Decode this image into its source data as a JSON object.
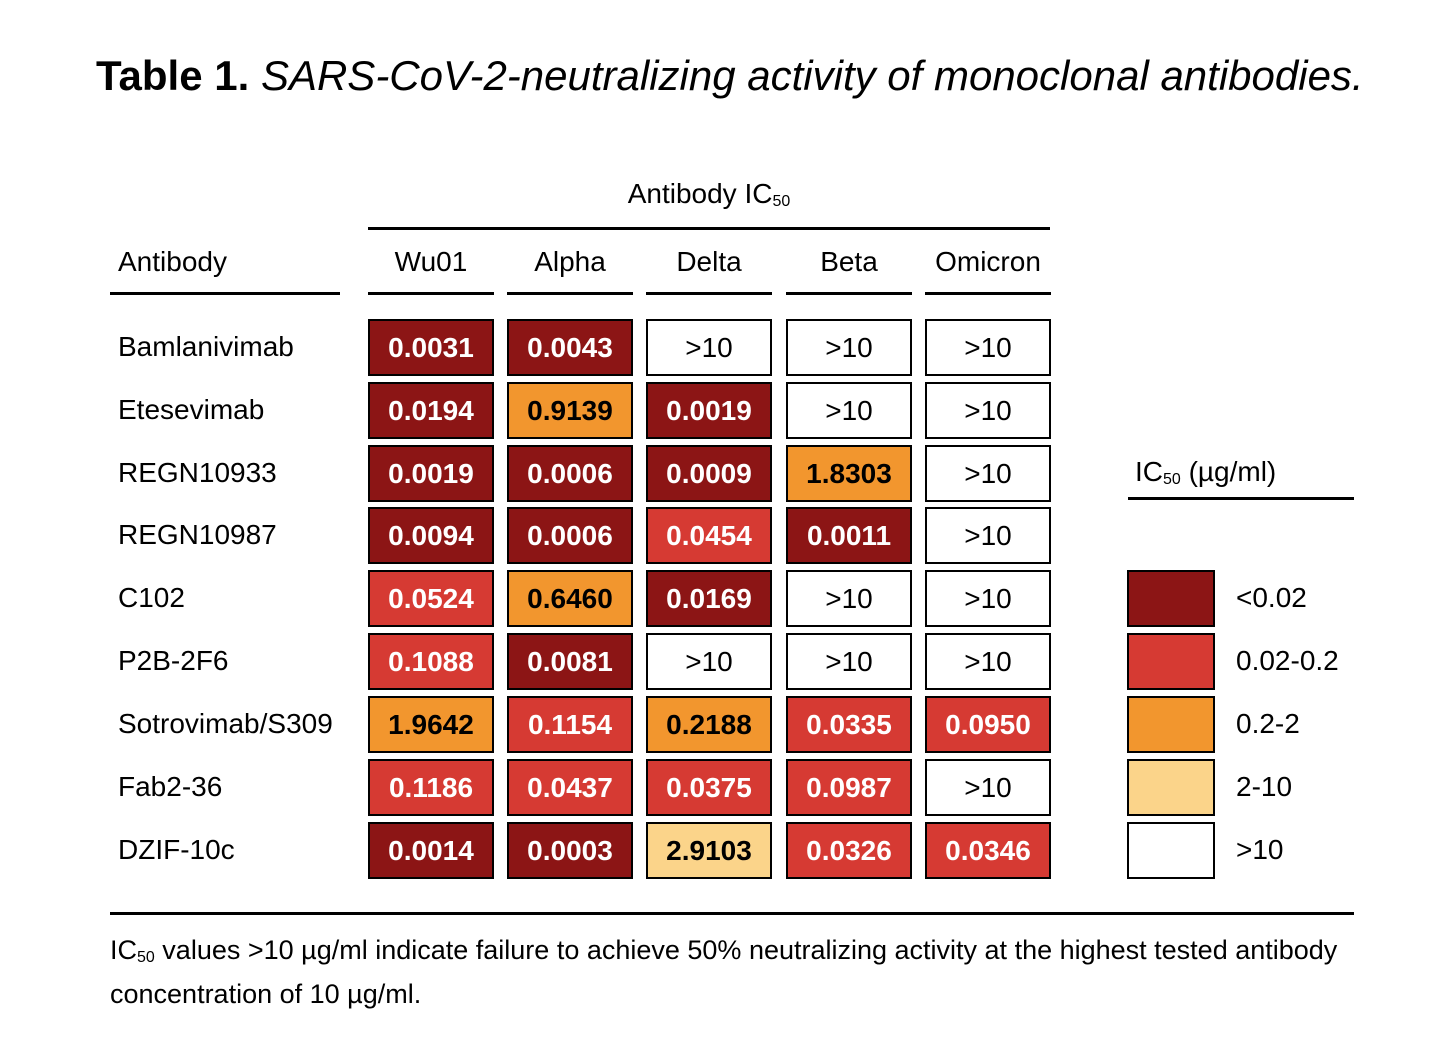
{
  "title": {
    "prefix": "Table 1.",
    "text": "SARS-CoV-2-neutralizing activity of monoclonal antibodies."
  },
  "group_header": {
    "label": "Antibody IC",
    "sub": "50"
  },
  "antibody_header": "Antibody",
  "chart_data": {
    "type": "table",
    "title": "Table 1. SARS-CoV-2-neutralizing activity of monoclonal antibodies.",
    "columns": [
      "Wu01",
      "Alpha",
      "Delta",
      "Beta",
      "Omicron"
    ],
    "rows": [
      {
        "antibody": "Bamlanivimab",
        "values": [
          "0.0031",
          "0.0043",
          ">10",
          ">10",
          ">10"
        ]
      },
      {
        "antibody": "Etesevimab",
        "values": [
          "0.0194",
          "0.9139",
          "0.0019",
          ">10",
          ">10"
        ]
      },
      {
        "antibody": "REGN10933",
        "values": [
          "0.0019",
          "0.0006",
          "0.0009",
          "1.8303",
          ">10"
        ]
      },
      {
        "antibody": "REGN10987",
        "values": [
          "0.0094",
          "0.0006",
          "0.0454",
          "0.0011",
          ">10"
        ]
      },
      {
        "antibody": "C102",
        "values": [
          "0.0524",
          "0.6460",
          "0.0169",
          ">10",
          ">10"
        ]
      },
      {
        "antibody": "P2B-2F6",
        "values": [
          "0.1088",
          "0.0081",
          ">10",
          ">10",
          ">10"
        ]
      },
      {
        "antibody": "Sotrovimab/S309",
        "values": [
          "1.9642",
          "0.1154",
          "0.2188",
          "0.0335",
          "0.0950"
        ]
      },
      {
        "antibody": "Fab2-36",
        "values": [
          "0.1186",
          "0.0437",
          "0.0375",
          "0.0987",
          ">10"
        ]
      },
      {
        "antibody": "DZIF-10c",
        "values": [
          "0.0014",
          "0.0003",
          "2.9103",
          "0.0326",
          "0.0346"
        ]
      }
    ],
    "legend": {
      "title_prefix": "IC",
      "title_sub": "50",
      "title_suffix": " (µg/ml)",
      "bins": [
        {
          "label": "<0.02",
          "color": "#8c1515"
        },
        {
          "label": "0.02-0.2",
          "color": "#d63a33"
        },
        {
          "label": "0.2-2",
          "color": "#f2962e"
        },
        {
          "label": "2-10",
          "color": "#fbd48a"
        },
        {
          "label": ">10",
          "color": "#ffffff"
        }
      ]
    }
  },
  "footnote": {
    "prefix": "IC",
    "sub": "50",
    "text": " values >10 µg/ml indicate failure to achieve 50% neutralizing activity at the highest tested antibody concentration of 10 µg/ml."
  }
}
